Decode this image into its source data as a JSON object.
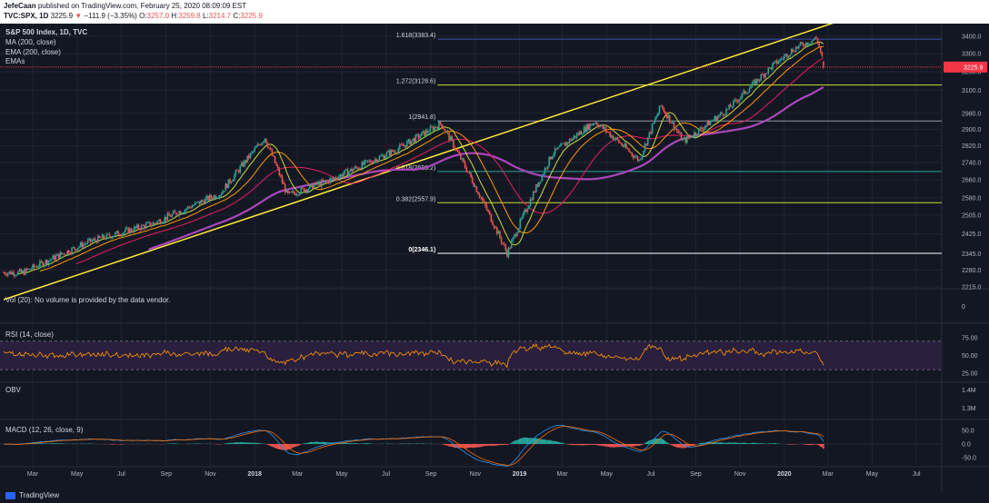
{
  "header": {
    "author": "JefeCaan",
    "published_text": "published on TradingView.com, February 25, 2020 08:09:09 EST",
    "symbol": "TVC:SPX, 1D",
    "close_value": "3225.9",
    "change_arrow": "▼",
    "change": "−111.9 (−3.35%)",
    "o_label": "O:",
    "o_value": "3257.0",
    "h_label": "H:",
    "h_value": "3259.8",
    "l_label": "L:",
    "l_value": "3214.7",
    "c_label": "C:",
    "c_value": "3225.9"
  },
  "legend": {
    "title": "S&P 500 Index, 1D, TVC",
    "ma": "MA (200, close)",
    "ema": "EMA (200, close)",
    "emas": "EMAs",
    "vol": "Vol (20): No volume is provided by the data vendor.",
    "rsi": "RSI (14, close)",
    "obv": "OBV",
    "macd": "MACD (12, 26, close, 9)"
  },
  "footer": {
    "brand": "TradingView"
  },
  "colors": {
    "background": "#131722",
    "grid": "#1f2433",
    "up": "#26a69a",
    "down": "#ef5350",
    "trendline": "#ffeb3b",
    "ma200": "#e91e63",
    "ema200": "#ab47bc",
    "rsi_line": "#ff9800",
    "rsi_band": "#2a1f3d",
    "price_line": "#f23645"
  },
  "chart_data": [
    {
      "type": "candlestick",
      "title": "S&P 500 Index, 1D, TVC",
      "x_ticks": [
        "Mar",
        "May",
        "Jul",
        "Sep",
        "Nov",
        "2018",
        "Mar",
        "May",
        "Jul",
        "Sep",
        "Nov",
        "2019",
        "Mar",
        "May",
        "Jul",
        "Sep",
        "Nov",
        "2020",
        "Mar",
        "May",
        "Jul"
      ],
      "y_ticks": [
        2215.0,
        2280.0,
        2345.0,
        2425.0,
        2505.0,
        2580.0,
        2660.0,
        2740.0,
        2820.0,
        2900.0,
        2980.0,
        3100.0,
        3200.0,
        3300.0,
        3400.0
      ],
      "ylim": [
        2190,
        3470
      ],
      "last_price": 3225.9,
      "fibonacci_levels": [
        {
          "label": "1.618(3383.4)",
          "value": 3383.4
        },
        {
          "label": "1.272(3128.6)",
          "value": 3128.6
        },
        {
          "label": "1(2941.8)",
          "value": 2941.8
        },
        {
          "label": "0.618(2698.2)",
          "value": 2698.2
        },
        {
          "label": "0.382(2557.9)",
          "value": 2557.9
        },
        {
          "label": "0(2346.1)",
          "value": 2346.1
        }
      ],
      "price_path": [
        {
          "x": "2017-02",
          "y": 2270
        },
        {
          "x": "2017-05",
          "y": 2390
        },
        {
          "x": "2017-08",
          "y": 2470
        },
        {
          "x": "2017-11",
          "y": 2600
        },
        {
          "x": "2018-01",
          "y": 2860
        },
        {
          "x": "2018-02",
          "y": 2590
        },
        {
          "x": "2018-04",
          "y": 2660
        },
        {
          "x": "2018-07",
          "y": 2800
        },
        {
          "x": "2018-09",
          "y": 2930
        },
        {
          "x": "2018-10",
          "y": 2740
        },
        {
          "x": "2018-12",
          "y": 2346
        },
        {
          "x": "2019-02",
          "y": 2780
        },
        {
          "x": "2019-04",
          "y": 2940
        },
        {
          "x": "2019-06",
          "y": 2750
        },
        {
          "x": "2019-07",
          "y": 3020
        },
        {
          "x": "2019-08",
          "y": 2840
        },
        {
          "x": "2019-10",
          "y": 3000
        },
        {
          "x": "2019-12",
          "y": 3230
        },
        {
          "x": "2020-01",
          "y": 3330
        },
        {
          "x": "2020-02",
          "y": 3390
        },
        {
          "x": "2020-02-25",
          "y": 3225.9
        }
      ]
    },
    {
      "type": "line",
      "title": "RSI (14, close)",
      "y_ticks": [
        25.0,
        50.0,
        75.0
      ],
      "levels": [
        70,
        30
      ]
    },
    {
      "type": "line",
      "title": "OBV",
      "y_ticks": [
        "1.4M",
        "1.3M"
      ]
    },
    {
      "type": "bar",
      "title": "MACD (12, 26, close, 9)",
      "y_ticks": [
        50.0,
        0.0,
        -50.0
      ]
    }
  ],
  "volume": {
    "axis_tick": "0"
  }
}
